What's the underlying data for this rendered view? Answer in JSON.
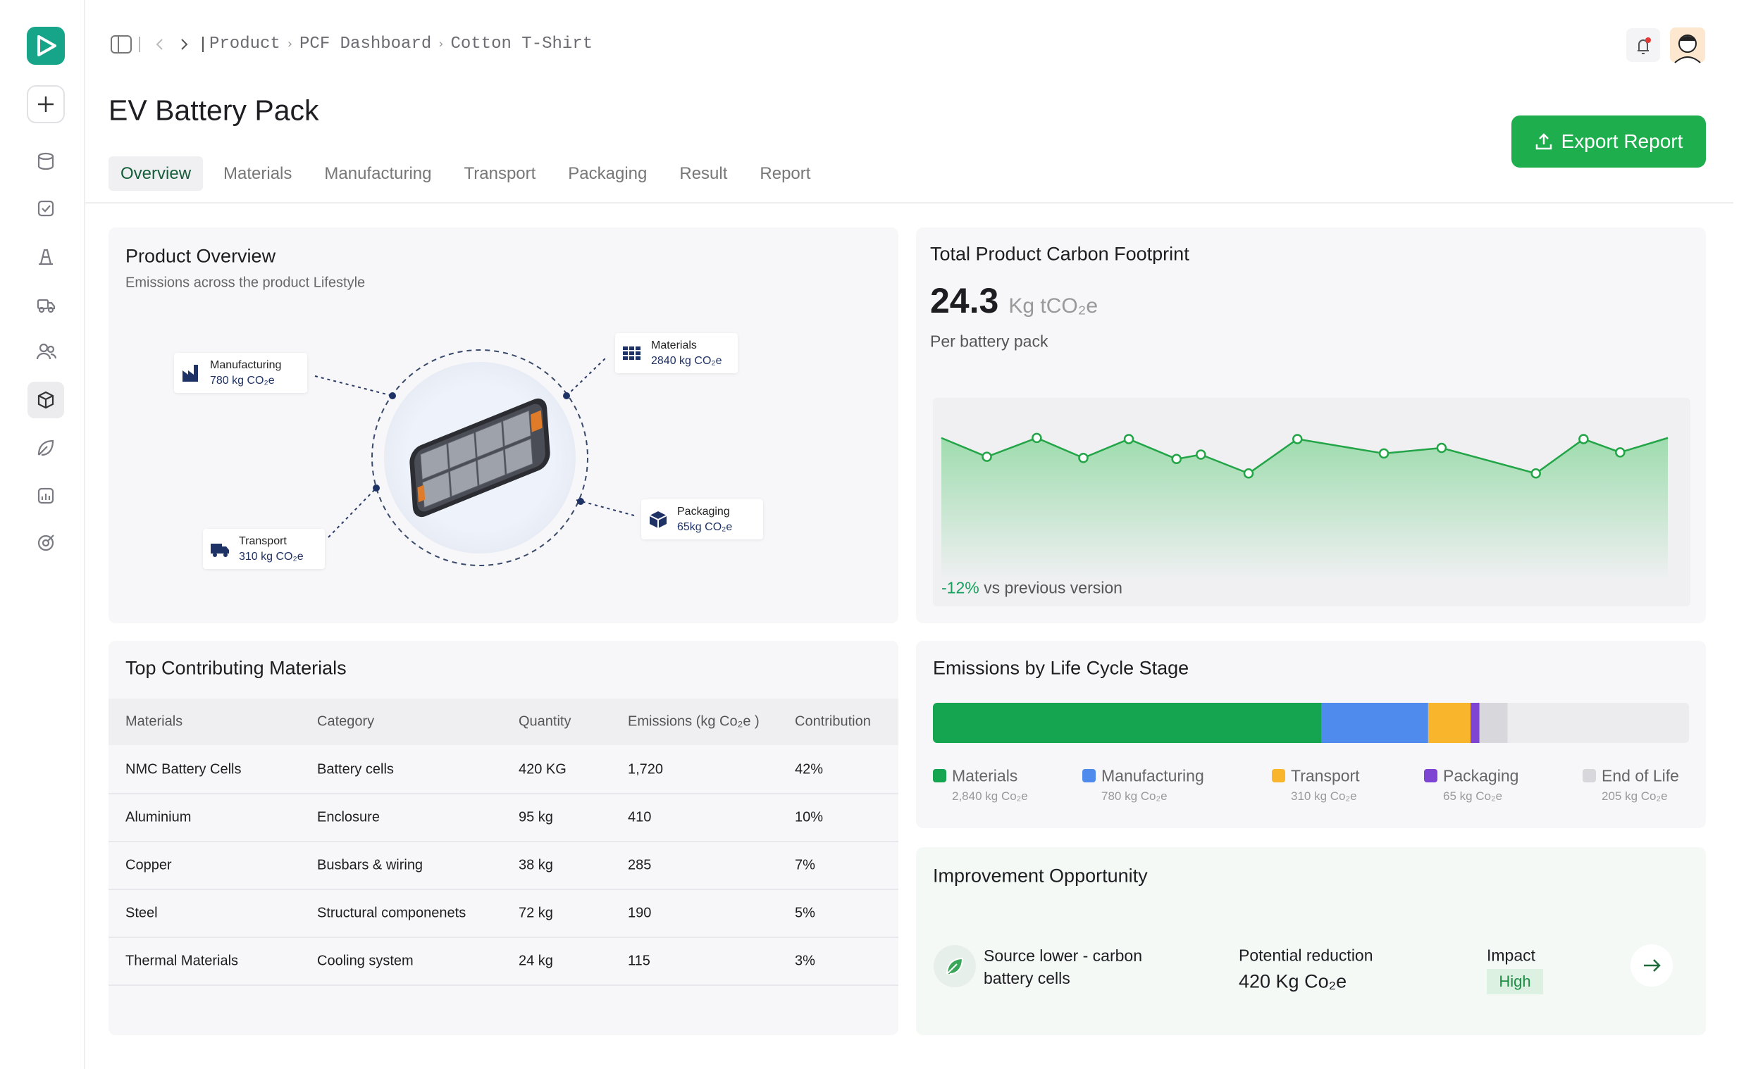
{
  "breadcrumb": [
    "Product",
    "PCF Dashboard",
    "Cotton T-Shirt"
  ],
  "page_title": "EV Battery Pack",
  "export_button": "Export Report",
  "tabs": [
    "Overview",
    "Materials",
    "Manufacturing",
    "Transport",
    "Packaging",
    "Result",
    "Report"
  ],
  "product_overview": {
    "title": "Product Overview",
    "subtitle": "Emissions across the product Lifestyle",
    "stages": [
      {
        "name": "Manufacturing",
        "value": "780 kg CO₂e"
      },
      {
        "name": "Materials",
        "value": "2840 kg CO₂e"
      },
      {
        "name": "Transport",
        "value": "310 kg CO₂e"
      },
      {
        "name": "Packaging",
        "value": "65kg CO₂e"
      }
    ]
  },
  "total_footprint": {
    "title": "Total Product Carbon Footprint",
    "value": "24.3",
    "unit": "Kg tCO₂e",
    "caption": "Per battery pack",
    "change": "-12%",
    "change_text": "vs previous version",
    "chart_data": {
      "type": "line",
      "x": [
        0,
        41,
        86,
        128,
        169,
        212,
        234,
        277,
        321,
        399,
        451,
        536,
        579,
        612,
        655
      ],
      "values": [
        35,
        18,
        35,
        17,
        34,
        16,
        20,
        3,
        34,
        21,
        26,
        3,
        34,
        22,
        35
      ],
      "xlim": [
        0,
        655
      ],
      "ylim": [
        0,
        40
      ],
      "color": "#22a447"
    }
  },
  "materials_table": {
    "title": "Top Contributing Materials",
    "columns": [
      "Materials",
      "Category",
      "Quantity",
      "Emissions (kg Co₂e )",
      "Contribution"
    ],
    "rows": [
      [
        "NMC Battery Cells",
        "Battery cells",
        "420 KG",
        "1,720",
        "42%"
      ],
      [
        "Aluminium",
        "Enclosure",
        "95 kg",
        "410",
        "10%"
      ],
      [
        "Copper",
        "Busbars & wiring",
        "38 kg",
        "285",
        "7%"
      ],
      [
        "Steel",
        "Structural componenets",
        "72 kg",
        "190",
        "5%"
      ],
      [
        "Thermal Materials",
        "Cooling system",
        "24 kg",
        "115",
        "3%"
      ]
    ]
  },
  "life_cycle": {
    "title": "Emissions by Life Cycle Stage",
    "chart_data": {
      "type": "bar",
      "stacked": true,
      "categories": [
        "Materials",
        "Manufacturing",
        "Transport",
        "Packaging",
        "End of Life"
      ],
      "values": [
        2840,
        780,
        310,
        65,
        205
      ],
      "value_labels": [
        "2,840 kg Co₂e",
        "780 kg Co₂e",
        "310 kg Co₂e",
        "65 kg Co₂e",
        "205 kg Co₂e"
      ],
      "colors": [
        "#15a550",
        "#4f8bec",
        "#f9b52b",
        "#7d45d1",
        "#d8d8dc"
      ]
    }
  },
  "improvement": {
    "title": "Improvement Opportunity",
    "action": "Source lower - carbon battery cells",
    "reduction_label": "Potential reduction",
    "reduction_value": "420 Kg Co₂e",
    "impact_label": "Impact",
    "impact_value": "High"
  }
}
